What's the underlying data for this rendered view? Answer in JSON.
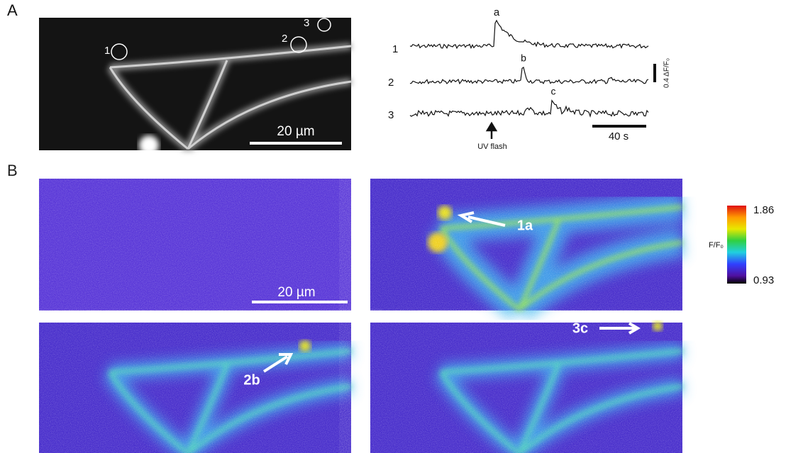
{
  "panel_a": {
    "label": "A",
    "image": {
      "roi_labels": [
        "1",
        "2",
        "3"
      ],
      "scale_bar": "20 µm"
    },
    "traces": {
      "trace_labels": [
        "1",
        "2",
        "3"
      ],
      "peak_labels": [
        "a",
        "b",
        "c"
      ],
      "scale_bar_y": "0.4 ΔF/F₀",
      "scale_bar_x": "40 s",
      "stimulus": "UV flash"
    }
  },
  "panel_b": {
    "label": "B",
    "scale_bar": "20 µm",
    "arrow_labels": [
      "1a",
      "2b",
      "3c"
    ],
    "colorbar": {
      "title": "F/F₀",
      "max": 1.86,
      "min": 0.93
    }
  }
}
